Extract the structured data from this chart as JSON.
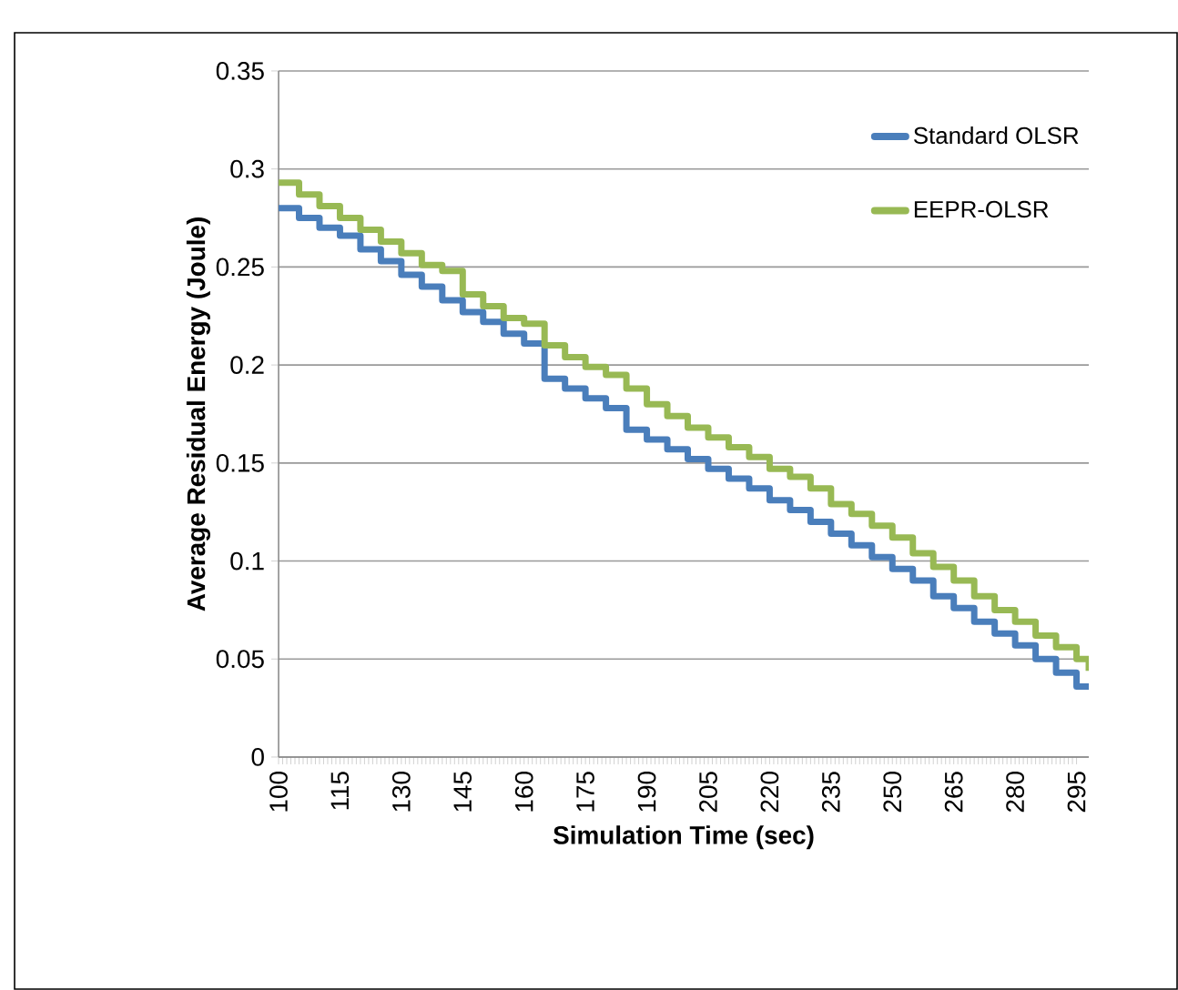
{
  "chart_data": {
    "type": "step",
    "xlabel": "Simulation Time (sec)",
    "ylabel": "Average Residual Energy (Joule)",
    "x": [
      100,
      105,
      110,
      115,
      120,
      125,
      130,
      135,
      140,
      145,
      150,
      155,
      160,
      165,
      170,
      175,
      180,
      185,
      190,
      195,
      200,
      205,
      210,
      215,
      220,
      225,
      230,
      235,
      240,
      245,
      250,
      255,
      260,
      265,
      270,
      275,
      280,
      285,
      290,
      295,
      298
    ],
    "series": [
      {
        "name": "Standard OLSR",
        "color": "#4a7ebb",
        "values": [
          0.28,
          0.275,
          0.27,
          0.266,
          0.259,
          0.253,
          0.246,
          0.24,
          0.233,
          0.227,
          0.222,
          0.216,
          0.211,
          0.193,
          0.188,
          0.183,
          0.178,
          0.167,
          0.162,
          0.157,
          0.152,
          0.147,
          0.142,
          0.137,
          0.131,
          0.126,
          0.12,
          0.114,
          0.108,
          0.102,
          0.096,
          0.09,
          0.082,
          0.076,
          0.069,
          0.063,
          0.057,
          0.05,
          0.043,
          0.036,
          0.035
        ]
      },
      {
        "name": "EEPR-OLSR",
        "color": "#98b954",
        "values": [
          0.293,
          0.287,
          0.281,
          0.275,
          0.269,
          0.263,
          0.257,
          0.251,
          0.248,
          0.236,
          0.23,
          0.224,
          0.221,
          0.21,
          0.204,
          0.199,
          0.195,
          0.188,
          0.18,
          0.174,
          0.168,
          0.163,
          0.158,
          0.153,
          0.147,
          0.143,
          0.137,
          0.129,
          0.124,
          0.118,
          0.112,
          0.104,
          0.097,
          0.09,
          0.082,
          0.075,
          0.069,
          0.062,
          0.056,
          0.05,
          0.044
        ]
      }
    ],
    "xlim": [
      100,
      298
    ],
    "xticks": [
      100,
      115,
      130,
      145,
      160,
      175,
      190,
      205,
      220,
      235,
      250,
      265,
      280,
      295
    ],
    "ylim": [
      0,
      0.35
    ],
    "yticks": [
      0,
      0.05,
      0.1,
      0.15,
      0.2,
      0.25,
      0.3,
      0.35
    ],
    "grid": "y",
    "legend": "top right",
    "line_style": "solid",
    "marker": "none"
  }
}
